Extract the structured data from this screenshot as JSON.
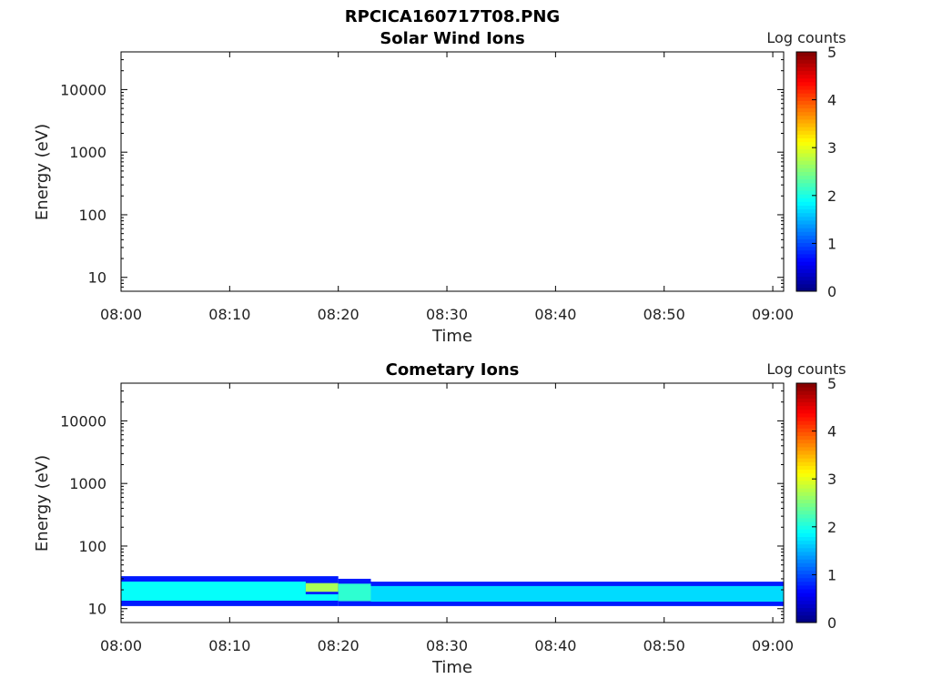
{
  "figure": {
    "title": "RPCICA160717T08.PNG"
  },
  "chart_data": [
    {
      "type": "heatmap",
      "title": "Solar Wind Ions",
      "xlabel": "Time",
      "ylabel": "Energy (eV)",
      "x_ticks": [
        "08:00",
        "08:10",
        "08:20",
        "08:30",
        "08:40",
        "08:50",
        "09:00"
      ],
      "x_range": [
        "08:00",
        "09:01"
      ],
      "y_scale": "log",
      "y_ticks": [
        10,
        100,
        1000,
        10000
      ],
      "y_tick_labels": [
        "10",
        "100",
        "1000",
        "10000"
      ],
      "y_range": [
        6,
        40000
      ],
      "colorbar": {
        "label": "Log counts",
        "range": [
          0,
          5
        ],
        "ticks": [
          "0",
          "1",
          "2",
          "3",
          "4",
          "5"
        ],
        "colormap": "jet"
      },
      "bands": []
    },
    {
      "type": "heatmap",
      "title": "Cometary Ions",
      "xlabel": "Time",
      "ylabel": "Energy (eV)",
      "x_ticks": [
        "08:00",
        "08:10",
        "08:20",
        "08:30",
        "08:40",
        "08:50",
        "09:00"
      ],
      "x_range": [
        "08:00",
        "09:01"
      ],
      "y_scale": "log",
      "y_ticks": [
        10,
        100,
        1000,
        10000
      ],
      "y_tick_labels": [
        "10",
        "100",
        "1000",
        "10000"
      ],
      "y_range": [
        6,
        40000
      ],
      "colorbar": {
        "label": "Log counts",
        "range": [
          0,
          5
        ],
        "ticks": [
          "0",
          "1",
          "2",
          "3",
          "4",
          "5"
        ],
        "colormap": "jet"
      },
      "bands": [
        {
          "t_start": "08:00",
          "t_end": "08:20",
          "e_min": 11,
          "e_max": 33,
          "log_counts": 1.9
        },
        {
          "t_start": "08:17",
          "t_end": "08:20",
          "e_min": 17,
          "e_max": 28,
          "log_counts": 2.7
        },
        {
          "t_start": "08:20",
          "t_end": "08:23",
          "e_min": 11,
          "e_max": 30,
          "log_counts": 2.1
        },
        {
          "t_start": "08:23",
          "t_end": "09:01",
          "e_min": 11,
          "e_max": 27,
          "log_counts": 1.7
        }
      ]
    }
  ]
}
